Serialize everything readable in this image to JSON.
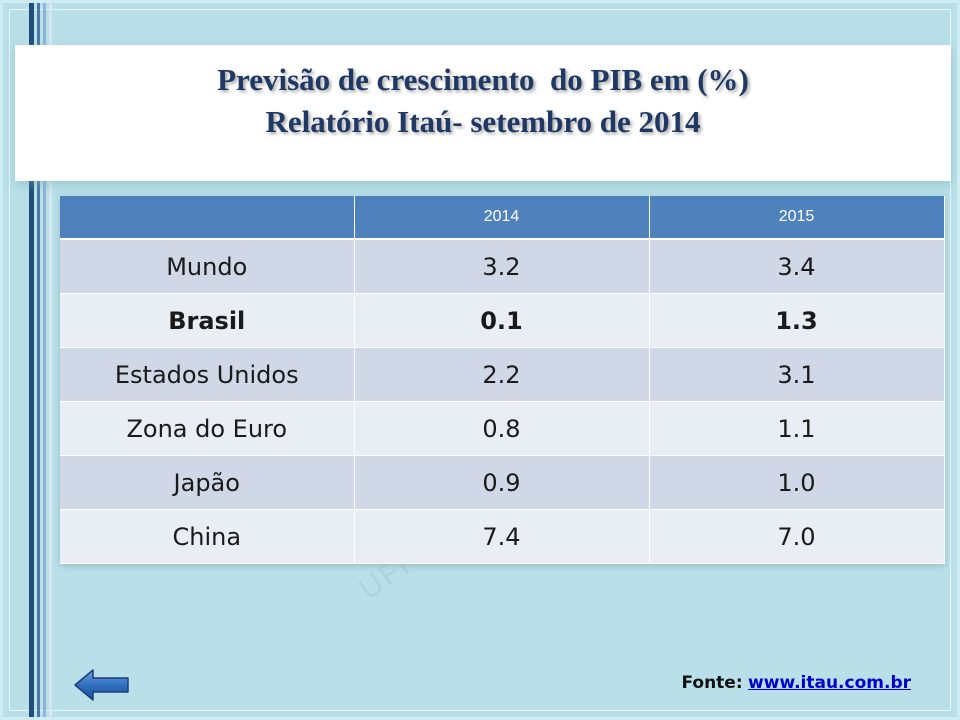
{
  "title": {
    "line1": "Previsão de crescimento  do PIB em (%)",
    "line2": "Relatório Itaú- setembro de 2014"
  },
  "table": {
    "headers": [
      "",
      "2014",
      "2015"
    ],
    "rows": [
      {
        "country": "Mundo",
        "y2014": "3.2",
        "y2015": "3.4"
      },
      {
        "country": "Brasil",
        "y2014": "0.1",
        "y2015": "1.3"
      },
      {
        "country": "Estados Unidos",
        "y2014": "2.2",
        "y2015": "3.1"
      },
      {
        "country": "Zona do Euro",
        "y2014": "0.8",
        "y2015": "1.1"
      },
      {
        "country": "Japão",
        "y2014": "0.9",
        "y2015": "1.0"
      },
      {
        "country": "China",
        "y2014": "7.4",
        "y2015": "7.0"
      }
    ]
  },
  "watermark": "UFPE",
  "source": {
    "label": "Fonte:",
    "link_text": "www.itau.com.br"
  },
  "nav": {
    "back_icon": "left-arrow-icon"
  },
  "colors": {
    "background": "#b9e0e8",
    "title": "#1f3864",
    "header_fill": "#4f81bd",
    "row_odd": "#d0d8e8",
    "row_even": "#e9edf4",
    "link": "#0000cc"
  }
}
